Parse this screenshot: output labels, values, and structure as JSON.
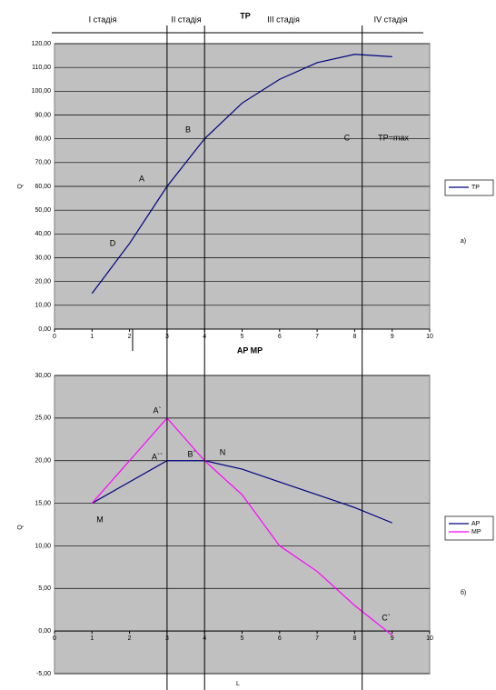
{
  "stages": [
    "I стадія",
    "II стадія",
    "III стадія",
    "IV стадія"
  ],
  "stage_boundaries": [
    3,
    4,
    8.2
  ],
  "chart_data": [
    {
      "type": "line",
      "title": "TP",
      "y_label": "Q",
      "panel_label": "а)",
      "x": [
        1,
        2,
        3,
        4,
        5,
        6,
        7,
        8,
        9
      ],
      "series": [
        {
          "name": "TP",
          "color": "#000080",
          "values": [
            15,
            36,
            60,
            80,
            95,
            105,
            112,
            115.5,
            114.5
          ]
        }
      ],
      "xlim": [
        0,
        10
      ],
      "xticks": [
        0,
        1,
        2,
        3,
        4,
        5,
        6,
        7,
        8,
        9,
        10
      ],
      "ylim": [
        0,
        120
      ],
      "yticks": [
        {
          "value": 0,
          "label": "0,00"
        },
        {
          "value": 10,
          "label": "10,00"
        },
        {
          "value": 20,
          "label": "20,00"
        },
        {
          "value": 30,
          "label": "30,00"
        },
        {
          "value": 40,
          "label": "40,00"
        },
        {
          "value": 50,
          "label": "50,00"
        },
        {
          "value": 60,
          "label": "60,00"
        },
        {
          "value": 70,
          "label": "70,00"
        },
        {
          "value": 80,
          "label": "80,00"
        },
        {
          "value": 90,
          "label": "90,00"
        },
        {
          "value": 100,
          "label": "100,00"
        },
        {
          "value": 110,
          "label": "110,00"
        },
        {
          "value": 120,
          "label": "120,00"
        }
      ],
      "grid": true,
      "legend": "right",
      "annotations": [
        "B",
        "A",
        "D",
        "C",
        "TP=max"
      ]
    },
    {
      "type": "line",
      "title": "AP MP",
      "x_label": "L",
      "y_label": "Q",
      "panel_label": "б)",
      "x": [
        1,
        2,
        3,
        4,
        5,
        6,
        7,
        8,
        9
      ],
      "series": [
        {
          "name": "AP",
          "color": "#000080",
          "values": [
            15,
            17.5,
            20,
            20,
            19,
            17.5,
            16,
            14.5,
            12.7
          ]
        },
        {
          "name": "MP",
          "color": "#ff00ff",
          "values": [
            15,
            20,
            25,
            20,
            16,
            10,
            7,
            3,
            -0.5
          ]
        }
      ],
      "xlim": [
        0,
        10
      ],
      "xticks": [
        0,
        1,
        2,
        3,
        4,
        5,
        6,
        7,
        8,
        9,
        10
      ],
      "ylim": [
        -5,
        30
      ],
      "yticks": [
        {
          "value": -5,
          "label": "-5,00"
        },
        {
          "value": 0,
          "label": "0,00"
        },
        {
          "value": 5,
          "label": "5,00"
        },
        {
          "value": 10,
          "label": "10,00"
        },
        {
          "value": 15,
          "label": "15,00"
        },
        {
          "value": 20,
          "label": "20,00"
        },
        {
          "value": 25,
          "label": "25,00"
        },
        {
          "value": 30,
          "label": "30,00"
        }
      ],
      "grid": true,
      "legend": "right",
      "annotations": [
        "A`",
        "A``",
        "B`",
        "N",
        "M",
        "C`"
      ]
    }
  ]
}
